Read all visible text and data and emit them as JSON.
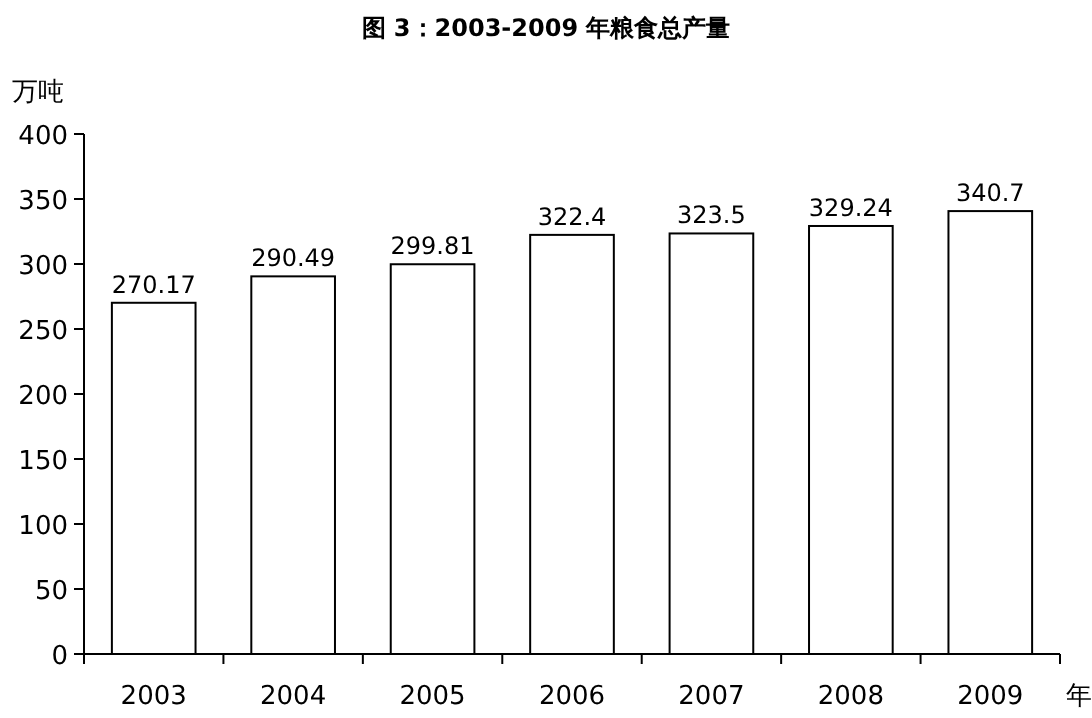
{
  "chart_data": {
    "type": "bar",
    "title": "图 3：2003-2009 年粮食总产量",
    "ylabel": "万吨",
    "xlabel": "年",
    "categories": [
      "2003",
      "2004",
      "2005",
      "2006",
      "2007",
      "2008",
      "2009"
    ],
    "values": [
      270.17,
      290.49,
      299.81,
      322.4,
      323.5,
      329.24,
      340.7
    ],
    "color": "#ffffff",
    "ylim": [
      0,
      400
    ],
    "yticks": [
      0,
      50,
      100,
      150,
      200,
      250,
      300,
      350,
      400
    ],
    "data_labels": true,
    "grid": false
  }
}
